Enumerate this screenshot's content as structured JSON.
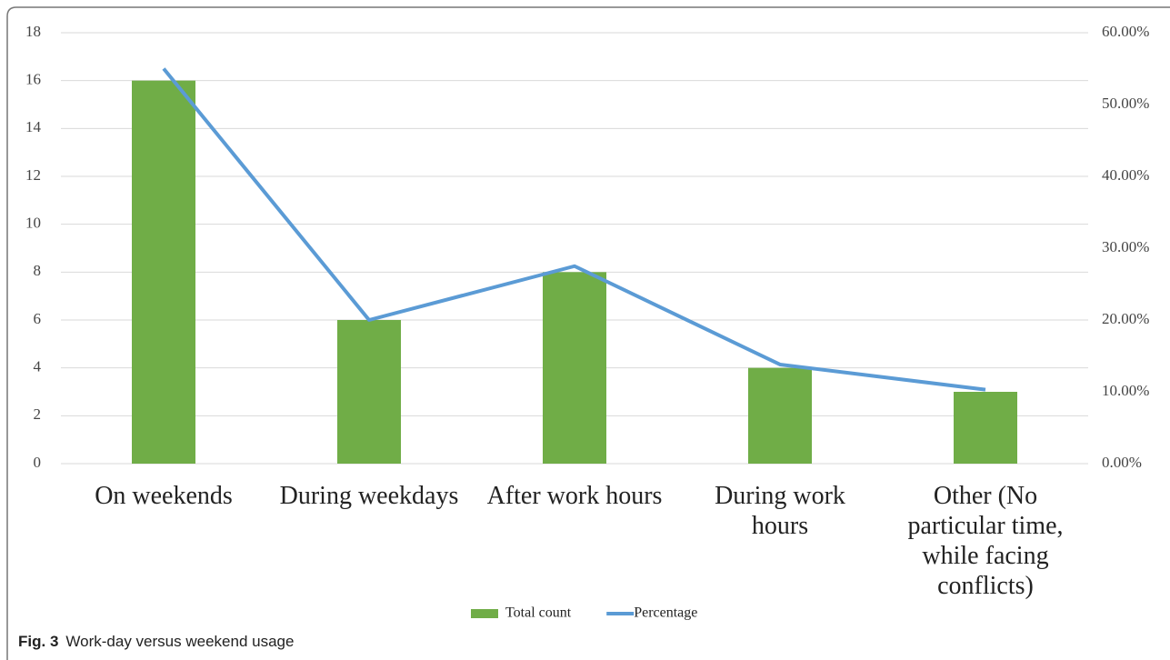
{
  "chart_data": {
    "type": "bar-line",
    "categories": [
      "On weekends",
      "During weekdays",
      "After work hours",
      "During work\nhours",
      "Other (No\nparticular time,\nwhile facing\nconflicts)"
    ],
    "series": [
      {
        "name": "Total count",
        "type": "bar",
        "color": "#70ad47",
        "values": [
          16,
          6,
          8,
          4,
          3
        ]
      },
      {
        "name": "Percentage",
        "type": "line",
        "axis": "y2",
        "color": "#5b9bd5",
        "values": [
          55,
          20,
          27.5,
          13.8,
          10.3
        ]
      }
    ],
    "ylim": [
      0,
      18
    ],
    "yticks": [
      0,
      2,
      4,
      6,
      8,
      10,
      12,
      14,
      16,
      18
    ],
    "y2lim": [
      0,
      60
    ],
    "y2ticks": [
      {
        "value": 0,
        "label": "0.00%"
      },
      {
        "value": 10,
        "label": "10.00%"
      },
      {
        "value": 20,
        "label": "20.00%"
      },
      {
        "value": 30,
        "label": "30.00%"
      },
      {
        "value": 40,
        "label": "40.00%"
      },
      {
        "value": 50,
        "label": "50.00%"
      },
      {
        "value": 60,
        "label": "60.00%"
      }
    ],
    "grid": true,
    "legend": "bottom"
  },
  "caption": {
    "label": "Fig. 3",
    "text": "Work-day versus weekend usage"
  }
}
